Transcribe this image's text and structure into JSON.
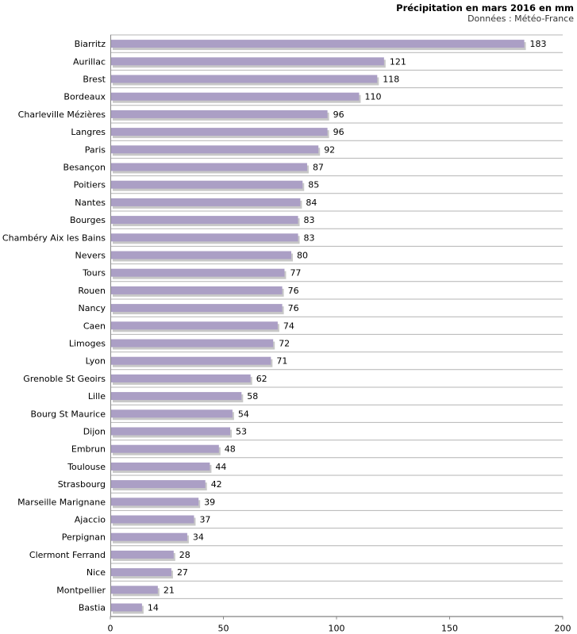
{
  "chart_data": {
    "type": "bar",
    "orientation": "horizontal",
    "title": "Précipitation en mars 2016 en mm",
    "subtitle": "Données : Météo-France",
    "categories": [
      "Biarritz",
      "Aurillac",
      "Brest",
      "Bordeaux",
      "Charleville Mézières",
      "Langres",
      "Paris",
      "Besançon",
      "Poitiers",
      "Nantes",
      "Bourges",
      "Chambéry Aix les Bains",
      "Nevers",
      "Tours",
      "Rouen",
      "Nancy",
      "Caen",
      "Limoges",
      "Lyon",
      "Grenoble St Geoirs",
      "Lille",
      "Bourg St Maurice",
      "Dijon",
      "Embrun",
      "Toulouse",
      "Strasbourg",
      "Marseille Marignane",
      "Ajaccio",
      "Perpignan",
      "Clermont Ferrand",
      "Nice",
      "Montpellier",
      "Bastia"
    ],
    "values": [
      183,
      121,
      118,
      110,
      96,
      96,
      92,
      87,
      85,
      84,
      83,
      83,
      80,
      77,
      76,
      76,
      74,
      72,
      71,
      62,
      58,
      54,
      53,
      48,
      44,
      42,
      39,
      37,
      34,
      28,
      27,
      21,
      14
    ],
    "xlim": [
      0,
      200
    ],
    "xticks": [
      0,
      50,
      100,
      150,
      200
    ],
    "grid": "horizontal-separators",
    "bar_color": "#ab9fc5",
    "shadow_color": "#c8c8c8"
  }
}
